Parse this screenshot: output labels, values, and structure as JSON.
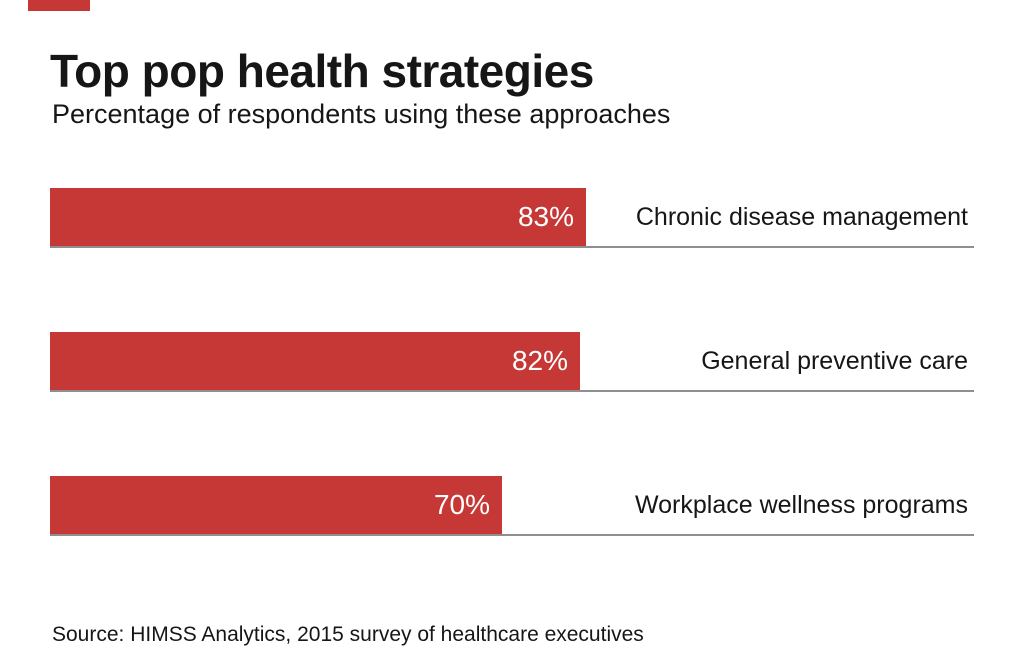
{
  "header": {
    "title": "Top pop health strategies",
    "subtitle": "Percentage of respondents using these approaches"
  },
  "chart_data": {
    "type": "bar",
    "orientation": "horizontal",
    "title": "Top pop health strategies",
    "subtitle": "Percentage of respondents using these approaches",
    "categories": [
      "Chronic disease management",
      "General preventive care",
      "Workplace wellness programs"
    ],
    "values": [
      83,
      82,
      70
    ],
    "value_labels": [
      "83%",
      "82%",
      "70%"
    ],
    "value_label_position": "inside-bar-end",
    "category_label_position": "right-aligned-outside",
    "grid": false,
    "axes_shown": false,
    "baseline_under_each_bar": true
  },
  "footer": {
    "source": "Source: HIMSS Analytics, 2015 survey of healthcare executives"
  },
  "colors": {
    "accent_red": "#c53836",
    "baseline_gray": "#8f8f8f",
    "text": "#161616",
    "value_text": "#ffffff",
    "background": "#ffffff"
  }
}
